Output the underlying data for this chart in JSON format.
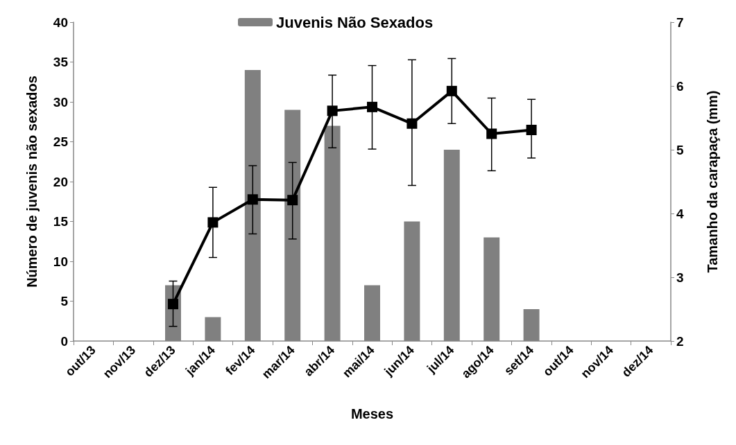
{
  "chart_data": {
    "type": "bar",
    "xlabel": "Meses",
    "ylabel": "Número de juvenis não sexados",
    "y2label": "Tamanho da carapaça (mm)",
    "categories": [
      "out/13",
      "nov/13",
      "dez/13",
      "jan/14",
      "fev/14",
      "mar/14",
      "abr/14",
      "mai/14",
      "jun/14",
      "jul/14",
      "ago/14",
      "set/14",
      "out/14",
      "nov/14",
      "dez/14"
    ],
    "series": [
      {
        "name": "Juvenis Não Sexados",
        "color": "#808080",
        "values": [
          null,
          null,
          7,
          3,
          34,
          29,
          27,
          7,
          15,
          24,
          13,
          4,
          null,
          null,
          null
        ]
      },
      {
        "type": "line",
        "axis": "y2",
        "color": "#000000",
        "marker": "square",
        "line_style": "solid",
        "values": [
          null,
          null,
          2.58,
          3.86,
          4.22,
          4.21,
          5.61,
          5.67,
          5.41,
          5.92,
          5.25,
          5.31,
          null,
          null,
          null
        ],
        "errors": [
          null,
          null,
          [
            2.23,
            2.94
          ],
          [
            3.31,
            4.41
          ],
          [
            3.68,
            4.75
          ],
          [
            3.6,
            4.8
          ],
          [
            5.03,
            6.17
          ],
          [
            5.01,
            6.32
          ],
          [
            4.44,
            6.41
          ],
          [
            5.41,
            6.43
          ],
          [
            4.67,
            5.81
          ],
          [
            4.87,
            5.79
          ],
          null,
          null,
          null
        ]
      }
    ],
    "ylim": [
      0,
      40
    ],
    "yticks": [
      0,
      5,
      10,
      15,
      20,
      25,
      30,
      35,
      40
    ],
    "y2lim": [
      2,
      7
    ],
    "y2ticks": [
      2,
      3,
      4,
      5,
      6,
      7
    ],
    "grid": false,
    "legend": "top"
  }
}
